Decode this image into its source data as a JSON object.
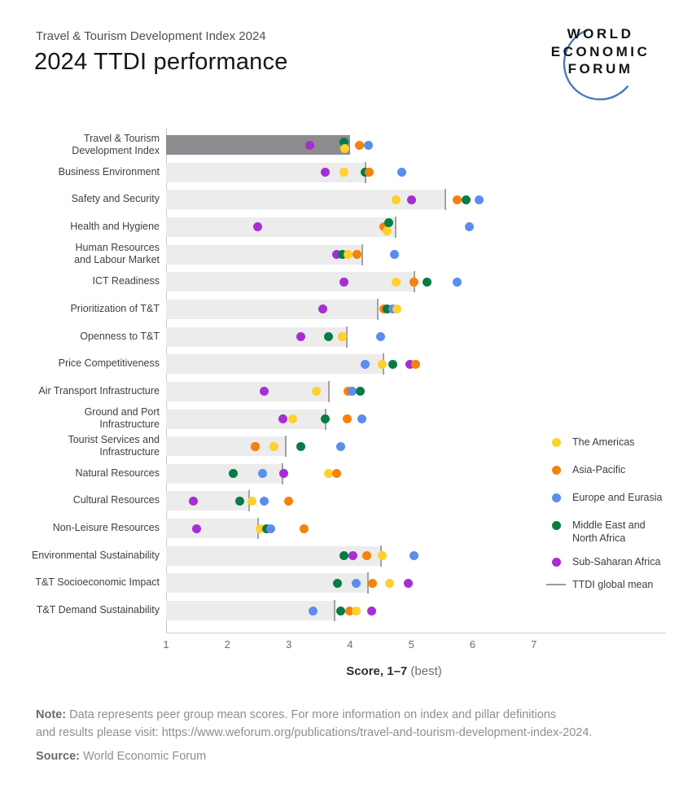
{
  "header": {
    "eyebrow": "Travel & Tourism Development Index 2024",
    "title": "2024 TTDI performance"
  },
  "logo": {
    "lines": [
      "WORLD",
      "ECONOMIC",
      "FORUM"
    ],
    "arc_color": "#4c7ac0"
  },
  "chart_data": {
    "type": "scatter",
    "title": "2024 TTDI performance",
    "xlabel_bold": "Score, 1–7",
    "xlabel_rest": " (best)",
    "x_ticks": [
      1,
      2,
      3,
      4,
      5,
      6,
      7
    ],
    "xlim": [
      1,
      8
    ],
    "grid": "off",
    "legend_position": "right",
    "mean_label": "TTDI global mean",
    "regions": {
      "americas": {
        "label": "The Americas",
        "color": "#FFD02E"
      },
      "asia": {
        "label": "Asia-Pacific",
        "color": "#F5820B"
      },
      "europe": {
        "label": "Europe and Eurasia",
        "color": "#5B8DEE"
      },
      "mena": {
        "label": "Middle East and\nNorth Africa",
        "color": "#077C44"
      },
      "ssa": {
        "label": "Sub-Saharan Africa",
        "color": "#A72ED3"
      }
    },
    "bar_colors": {
      "light": "#ececec",
      "dark": "#8c8c90",
      "mean_line": "#a2a2a2"
    },
    "rows": [
      {
        "label": "Travel & Tourism\nDevelopment Index",
        "mean": 4.0,
        "dark": true,
        "dots": [
          {
            "r": "ssa",
            "v": 3.35
          },
          {
            "r": "mena",
            "v": 3.9,
            "dy": -4
          },
          {
            "r": "americas",
            "v": 3.92,
            "dy": 4
          },
          {
            "r": "asia",
            "v": 4.15
          },
          {
            "r": "europe",
            "v": 4.3
          }
        ]
      },
      {
        "label": "Business Environment",
        "mean": 4.25,
        "dots": [
          {
            "r": "ssa",
            "v": 3.6
          },
          {
            "r": "americas",
            "v": 3.9
          },
          {
            "r": "mena",
            "v": 4.25
          },
          {
            "r": "asia",
            "v": 4.32
          },
          {
            "r": "europe",
            "v": 4.85
          }
        ]
      },
      {
        "label": "Safety and Security",
        "mean": 5.55,
        "dots": [
          {
            "r": "americas",
            "v": 4.75
          },
          {
            "r": "ssa",
            "v": 5.0
          },
          {
            "r": "asia",
            "v": 5.75
          },
          {
            "r": "mena",
            "v": 5.9
          },
          {
            "r": "europe",
            "v": 6.1
          }
        ]
      },
      {
        "label": "Health and Hygiene",
        "mean": 4.75,
        "dots": [
          {
            "r": "ssa",
            "v": 2.5
          },
          {
            "r": "asia",
            "v": 4.55
          },
          {
            "r": "americas",
            "v": 4.6,
            "dy": 5
          },
          {
            "r": "mena",
            "v": 4.63,
            "dy": -5
          },
          {
            "r": "europe",
            "v": 5.95
          }
        ]
      },
      {
        "label": "Human Resources\nand Labour Market",
        "mean": 4.2,
        "dots": [
          {
            "r": "ssa",
            "v": 3.78
          },
          {
            "r": "mena",
            "v": 3.87
          },
          {
            "r": "americas",
            "v": 3.97
          },
          {
            "r": "asia",
            "v": 4.12
          },
          {
            "r": "europe",
            "v": 4.73
          }
        ]
      },
      {
        "label": "ICT Readiness",
        "mean": 5.05,
        "dots": [
          {
            "r": "ssa",
            "v": 3.9
          },
          {
            "r": "americas",
            "v": 4.75
          },
          {
            "r": "asia",
            "v": 5.05
          },
          {
            "r": "mena",
            "v": 5.25
          },
          {
            "r": "europe",
            "v": 5.75
          }
        ]
      },
      {
        "label": "Prioritization of T&T",
        "mean": 4.45,
        "dots": [
          {
            "r": "ssa",
            "v": 3.55
          },
          {
            "r": "asia",
            "v": 4.55
          },
          {
            "r": "mena",
            "v": 4.6
          },
          {
            "r": "europe",
            "v": 4.7
          },
          {
            "r": "americas",
            "v": 4.77
          }
        ]
      },
      {
        "label": "Openness to T&T",
        "mean": 3.95,
        "dots": [
          {
            "r": "ssa",
            "v": 3.2
          },
          {
            "r": "mena",
            "v": 3.65
          },
          {
            "r": "asia",
            "v": 3.87
          },
          {
            "r": "americas",
            "v": 3.88
          },
          {
            "r": "europe",
            "v": 4.5
          }
        ]
      },
      {
        "label": "Price Competitiveness",
        "mean": 4.55,
        "dots": [
          {
            "r": "europe",
            "v": 4.25
          },
          {
            "r": "americas",
            "v": 4.53
          },
          {
            "r": "mena",
            "v": 4.7
          },
          {
            "r": "ssa",
            "v": 4.98
          },
          {
            "r": "asia",
            "v": 5.07
          }
        ]
      },
      {
        "label": "Air Transport Infrastructure",
        "mean": 3.65,
        "dots": [
          {
            "r": "ssa",
            "v": 2.6
          },
          {
            "r": "americas",
            "v": 3.45
          },
          {
            "r": "asia",
            "v": 3.97
          },
          {
            "r": "europe",
            "v": 4.04
          },
          {
            "r": "mena",
            "v": 4.17
          }
        ]
      },
      {
        "label": "Ground and Port\nInfrastructure",
        "mean": 3.6,
        "dots": [
          {
            "r": "ssa",
            "v": 2.9
          },
          {
            "r": "americas",
            "v": 3.07
          },
          {
            "r": "mena",
            "v": 3.6
          },
          {
            "r": "asia",
            "v": 3.95
          },
          {
            "r": "europe",
            "v": 4.2
          }
        ]
      },
      {
        "label": "Tourist Services and\nInfrastructure",
        "mean": 2.95,
        "dots": [
          {
            "r": "ssa",
            "v": 2.45
          },
          {
            "r": "asia",
            "v": 2.46
          },
          {
            "r": "americas",
            "v": 2.76
          },
          {
            "r": "mena",
            "v": 3.2
          },
          {
            "r": "europe",
            "v": 3.85
          }
        ]
      },
      {
        "label": "Natural Resources",
        "mean": 2.9,
        "dots": [
          {
            "r": "mena",
            "v": 2.1
          },
          {
            "r": "europe",
            "v": 2.58
          },
          {
            "r": "ssa",
            "v": 2.92
          },
          {
            "r": "americas",
            "v": 3.65
          },
          {
            "r": "asia",
            "v": 3.78
          }
        ]
      },
      {
        "label": "Cultural Resources",
        "mean": 2.35,
        "dots": [
          {
            "r": "ssa",
            "v": 1.45
          },
          {
            "r": "mena",
            "v": 2.2
          },
          {
            "r": "americas",
            "v": 2.4
          },
          {
            "r": "europe",
            "v": 2.6
          },
          {
            "r": "asia",
            "v": 3.0
          }
        ]
      },
      {
        "label": "Non-Leisure Resources",
        "mean": 2.5,
        "dots": [
          {
            "r": "ssa",
            "v": 1.5
          },
          {
            "r": "americas",
            "v": 2.53
          },
          {
            "r": "mena",
            "v": 2.64
          },
          {
            "r": "europe",
            "v": 2.7
          },
          {
            "r": "asia",
            "v": 3.25
          }
        ]
      },
      {
        "label": "Environmental Sustainability",
        "mean": 4.5,
        "dots": [
          {
            "r": "mena",
            "v": 3.9
          },
          {
            "r": "ssa",
            "v": 4.05
          },
          {
            "r": "asia",
            "v": 4.28
          },
          {
            "r": "americas",
            "v": 4.52
          },
          {
            "r": "europe",
            "v": 5.05
          }
        ]
      },
      {
        "label": "T&T Socioeconomic Impact",
        "mean": 4.3,
        "dots": [
          {
            "r": "mena",
            "v": 3.8
          },
          {
            "r": "europe",
            "v": 4.1
          },
          {
            "r": "asia",
            "v": 4.37
          },
          {
            "r": "americas",
            "v": 4.65
          },
          {
            "r": "ssa",
            "v": 4.95
          }
        ]
      },
      {
        "label": "T&T Demand Sustainability",
        "mean": 3.75,
        "dots": [
          {
            "r": "europe",
            "v": 3.4
          },
          {
            "r": "mena",
            "v": 3.85
          },
          {
            "r": "asia",
            "v": 4.0
          },
          {
            "r": "americas",
            "v": 4.1
          },
          {
            "r": "ssa",
            "v": 4.35
          }
        ]
      }
    ]
  },
  "note": {
    "label": "Note:",
    "line1": "Data represents peer group mean scores. For more information on index and pillar definitions",
    "line2": "and results please visit: https://www.weforum.org/publications/travel-and-tourism-development-index-2024.",
    "source_label": "Source:",
    "source": "World Economic Forum"
  }
}
